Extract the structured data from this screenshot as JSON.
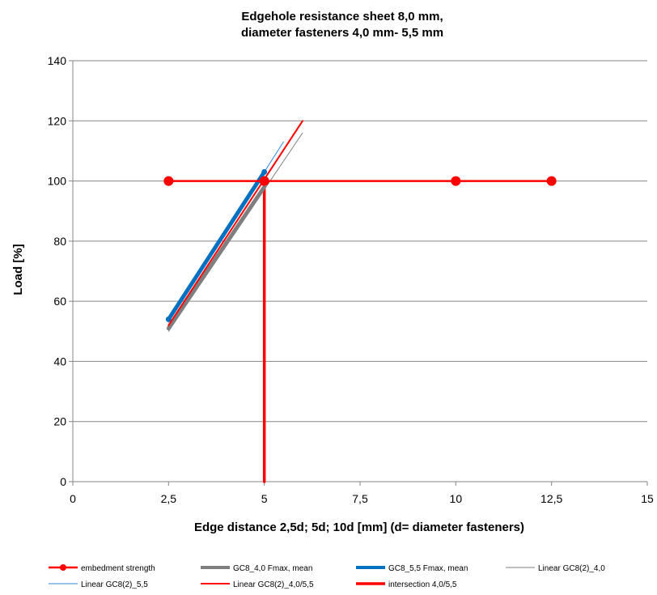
{
  "chart_data": {
    "type": "line",
    "title_line1": "Edgehole resistance sheet 8,0 mm,",
    "title_line2": "diameter fasteners 4,0 mm-  5,5 mm",
    "xlabel": "Edge distance 2,5d; 5d; 10d [mm] (d= diameter fasteners)",
    "ylabel": "Load [%]",
    "xlim": [
      0,
      15
    ],
    "ylim": [
      0,
      140
    ],
    "x_ticks": [
      "0",
      "2,5",
      "5",
      "7,5",
      "10",
      "12,5",
      "15"
    ],
    "x_tick_values": [
      0,
      2.5,
      5,
      7.5,
      10,
      12.5,
      15
    ],
    "y_ticks": [
      "0",
      "20",
      "40",
      "60",
      "80",
      "100",
      "120",
      "140"
    ],
    "y_tick_values": [
      0,
      20,
      40,
      60,
      80,
      100,
      120,
      140
    ],
    "grid": "horizontal",
    "legend_position": "bottom",
    "series": [
      {
        "name": "embedment strength",
        "color": "#ff0000",
        "width": 2.5,
        "marker": "circle",
        "points": [
          [
            2.5,
            100
          ],
          [
            5,
            100
          ],
          [
            10,
            100
          ],
          [
            12.5,
            100
          ]
        ]
      },
      {
        "name": "GC8_4,0 Fmax, mean",
        "color": "#7f7f7f",
        "width": 5,
        "marker": "none",
        "points": [
          [
            2.5,
            51
          ],
          [
            5,
            98
          ]
        ]
      },
      {
        "name": "GC8_5,5 Fmax, mean",
        "color": "#0070c0",
        "width": 5,
        "marker": "small",
        "points": [
          [
            2.5,
            54
          ],
          [
            5,
            103
          ]
        ]
      },
      {
        "name": "Linear GC8(2)_4,0",
        "color": "#808080",
        "width": 1,
        "marker": "none",
        "points": [
          [
            2.5,
            50
          ],
          [
            6,
            116
          ]
        ]
      },
      {
        "name": "Linear GC8(2)_5,5",
        "color": "#2e86de",
        "width": 1,
        "marker": "none",
        "points": [
          [
            2.5,
            53
          ],
          [
            5.5,
            113
          ]
        ]
      },
      {
        "name": "Linear GC8(2)_4,0/5,5",
        "color": "#ff0000",
        "width": 2,
        "marker": "none",
        "points": [
          [
            2.5,
            52
          ],
          [
            6,
            120
          ]
        ]
      },
      {
        "name": "intersection 4,0/5,5",
        "color": "#ff0000",
        "width": 3.5,
        "marker": "none",
        "points": [
          [
            5,
            0
          ],
          [
            5,
            100
          ]
        ]
      }
    ]
  }
}
